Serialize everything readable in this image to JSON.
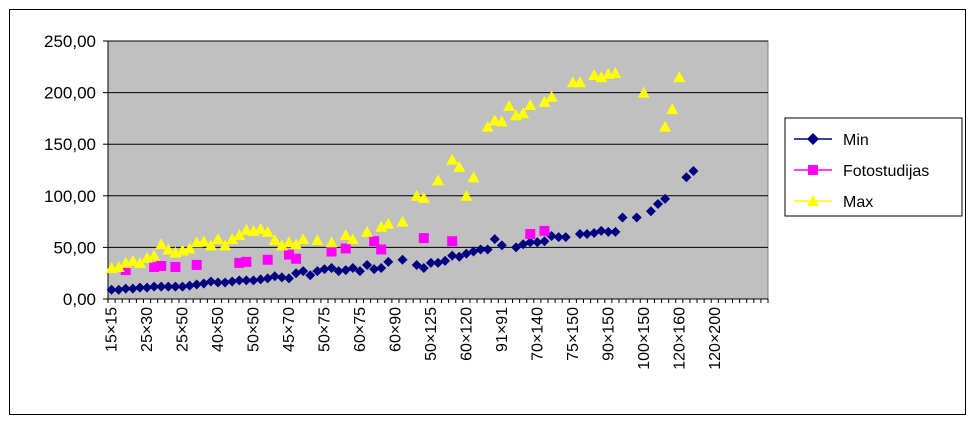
{
  "chart_data": {
    "type": "scatter",
    "title": "",
    "xlabel": "",
    "ylabel": "",
    "ylim": [
      0,
      250
    ],
    "y_ticks": [
      "0,00",
      "50,00",
      "100,00",
      "150,00",
      "200,00",
      "250,00"
    ],
    "x_tick_labels": [
      "15×15",
      "25×30",
      "25×50",
      "40×50",
      "50×50",
      "45×70",
      "50×75",
      "60×75",
      "60×90",
      "50×125",
      "60×120",
      "91×91",
      "70×140",
      "75×150",
      "90×150",
      "100×150",
      "120×160",
      "120×200"
    ],
    "x_tick_every": 5,
    "x_count": 93,
    "plot_background": "#c0c0c0",
    "grid": true,
    "legend_position": "right",
    "series": [
      {
        "name": "Min",
        "color": "#000080",
        "marker": "diamond",
        "points": [
          [
            1,
            9
          ],
          [
            2,
            9
          ],
          [
            3,
            10
          ],
          [
            4,
            10
          ],
          [
            5,
            11
          ],
          [
            6,
            11
          ],
          [
            7,
            12
          ],
          [
            8,
            12
          ],
          [
            9,
            12
          ],
          [
            10,
            12
          ],
          [
            11,
            12
          ],
          [
            12,
            13
          ],
          [
            13,
            14
          ],
          [
            14,
            15
          ],
          [
            15,
            17
          ],
          [
            16,
            16
          ],
          [
            17,
            16
          ],
          [
            18,
            17
          ],
          [
            19,
            18
          ],
          [
            20,
            18
          ],
          [
            21,
            18
          ],
          [
            22,
            19
          ],
          [
            23,
            20
          ],
          [
            24,
            22
          ],
          [
            25,
            21
          ],
          [
            26,
            20
          ],
          [
            27,
            25
          ],
          [
            28,
            27
          ],
          [
            29,
            23
          ],
          [
            30,
            27
          ],
          [
            31,
            29
          ],
          [
            32,
            30
          ],
          [
            33,
            27
          ],
          [
            34,
            28
          ],
          [
            35,
            30
          ],
          [
            36,
            27
          ],
          [
            37,
            33
          ],
          [
            38,
            29
          ],
          [
            39,
            30
          ],
          [
            40,
            36
          ],
          [
            42,
            38
          ],
          [
            44,
            33
          ],
          [
            45,
            30
          ],
          [
            46,
            35
          ],
          [
            47,
            35
          ],
          [
            48,
            37
          ],
          [
            49,
            42
          ],
          [
            50,
            41
          ],
          [
            51,
            44
          ],
          [
            52,
            46
          ],
          [
            53,
            48
          ],
          [
            54,
            48
          ],
          [
            55,
            58
          ],
          [
            56,
            52
          ],
          [
            58,
            50
          ],
          [
            59,
            53
          ],
          [
            60,
            55
          ],
          [
            61,
            55
          ],
          [
            62,
            56
          ],
          [
            63,
            61
          ],
          [
            64,
            60
          ],
          [
            65,
            60
          ],
          [
            67,
            63
          ],
          [
            68,
            63
          ],
          [
            69,
            64
          ],
          [
            70,
            66
          ],
          [
            71,
            65
          ],
          [
            72,
            65
          ],
          [
            73,
            79
          ],
          [
            75,
            79
          ],
          [
            77,
            85
          ],
          [
            78,
            92
          ],
          [
            79,
            97
          ],
          [
            82,
            118
          ],
          [
            83,
            124
          ]
        ]
      },
      {
        "name": "Fotostudijas",
        "color": "#ff00ff",
        "marker": "square",
        "points": [
          [
            3,
            28
          ],
          [
            7,
            31
          ],
          [
            8,
            32
          ],
          [
            10,
            31
          ],
          [
            13,
            33
          ],
          [
            19,
            35
          ],
          [
            20,
            36
          ],
          [
            23,
            38
          ],
          [
            26,
            43
          ],
          [
            27,
            39
          ],
          [
            32,
            46
          ],
          [
            34,
            49
          ],
          [
            38,
            56
          ],
          [
            39,
            48
          ],
          [
            45,
            59
          ],
          [
            49,
            56
          ],
          [
            60,
            63
          ],
          [
            62,
            66
          ]
        ]
      },
      {
        "name": "Max",
        "color": "#ffff00",
        "marker": "triangle",
        "points": [
          [
            1,
            30
          ],
          [
            2,
            31
          ],
          [
            3,
            35
          ],
          [
            4,
            37
          ],
          [
            5,
            35
          ],
          [
            6,
            40
          ],
          [
            7,
            42
          ],
          [
            8,
            53
          ],
          [
            9,
            48
          ],
          [
            10,
            45
          ],
          [
            11,
            47
          ],
          [
            12,
            49
          ],
          [
            13,
            55
          ],
          [
            14,
            56
          ],
          [
            15,
            52
          ],
          [
            16,
            58
          ],
          [
            17,
            52
          ],
          [
            18,
            58
          ],
          [
            19,
            62
          ],
          [
            20,
            67
          ],
          [
            21,
            66
          ],
          [
            22,
            68
          ],
          [
            23,
            65
          ],
          [
            24,
            57
          ],
          [
            25,
            52
          ],
          [
            26,
            55
          ],
          [
            27,
            53
          ],
          [
            28,
            58
          ],
          [
            30,
            57
          ],
          [
            32,
            55
          ],
          [
            34,
            62
          ],
          [
            35,
            58
          ],
          [
            37,
            65
          ],
          [
            39,
            70
          ],
          [
            40,
            73
          ],
          [
            42,
            75
          ],
          [
            44,
            100
          ],
          [
            45,
            98
          ],
          [
            47,
            115
          ],
          [
            49,
            135
          ],
          [
            50,
            128
          ],
          [
            51,
            100
          ],
          [
            52,
            118
          ],
          [
            54,
            167
          ],
          [
            55,
            173
          ],
          [
            56,
            172
          ],
          [
            57,
            187
          ],
          [
            58,
            178
          ],
          [
            59,
            180
          ],
          [
            60,
            188
          ],
          [
            62,
            191
          ],
          [
            63,
            196
          ],
          [
            66,
            210
          ],
          [
            67,
            210
          ],
          [
            69,
            217
          ],
          [
            70,
            215
          ],
          [
            71,
            218
          ],
          [
            72,
            219
          ],
          [
            76,
            200
          ],
          [
            79,
            167
          ],
          [
            80,
            184
          ],
          [
            81,
            215
          ]
        ]
      }
    ]
  }
}
